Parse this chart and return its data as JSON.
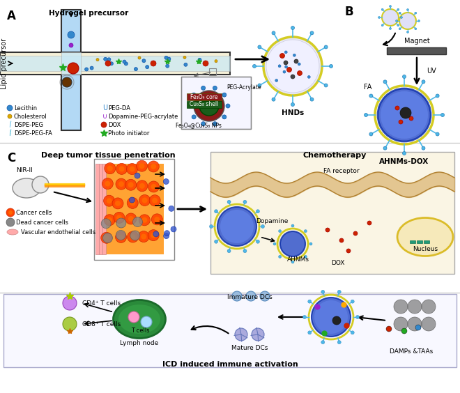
{
  "title": "",
  "bg_color": "#ffffff",
  "panel_A_label": "A",
  "panel_B_label": "B",
  "panel_C_label": "C",
  "hydrogel_precursor": "Hydrogel precursor",
  "lipid_precursor": "Lipid precursor",
  "HNDs": "HNDs",
  "AHNMs_DOX": "AHNMs-DOX",
  "Magnet": "Magnet",
  "UV": "UV",
  "FA": "FA",
  "deep_tumor": "Deep tumor tissue penetration",
  "chemotherapy": "Chemotherapy",
  "NIR": "NIR-II",
  "cancer_cells": "Cancer cells",
  "dead_cancer": "Dead cancer cells",
  "vascular": "Vascular endothelial cells",
  "FA_receptor": "FA receptor",
  "dopamine": "Dopamine",
  "AHNMs": "AHNMs",
  "DOX": "DOX",
  "nucleus": "Nucleus",
  "ICD": "ICD induced immune activation",
  "immature_DC": "Immature DCs",
  "mature_DC": "Mature DCs",
  "lymph_node": "Lymph node",
  "T_cells": "T cells",
  "CD4": "CD4⁺ T cells",
  "CD8": "CD8⁺ T cells",
  "DAMPs": "DAMPs &TAAs",
  "peg_acrylate": "PEG-Acrylate",
  "fe3o4_core": "Fe₃O₄ core",
  "cu9s8_shell": "Cu₉S₈ shell",
  "fe3o4_nps": "Fe₃O₄@Cu₉S₈ NPs",
  "legend_lecithin": "Lecithin",
  "legend_cholesterol": "Cholesterol",
  "legend_dspe_peg": "DSPE-PEG",
  "legend_dspe_peg_fa": "DSPE-PEG-FA",
  "legend_peg_da": "PEG-DA",
  "legend_dopamine": "Dopamine-PEG-acrylate",
  "legend_dox": "DOX",
  "legend_photo": "Photo initiator",
  "damp_dots": [
    [
      558,
      472,
      "#cc2200"
    ],
    [
      580,
      475,
      "#22aa22"
    ],
    [
      600,
      470,
      "#3388cc"
    ]
  ]
}
